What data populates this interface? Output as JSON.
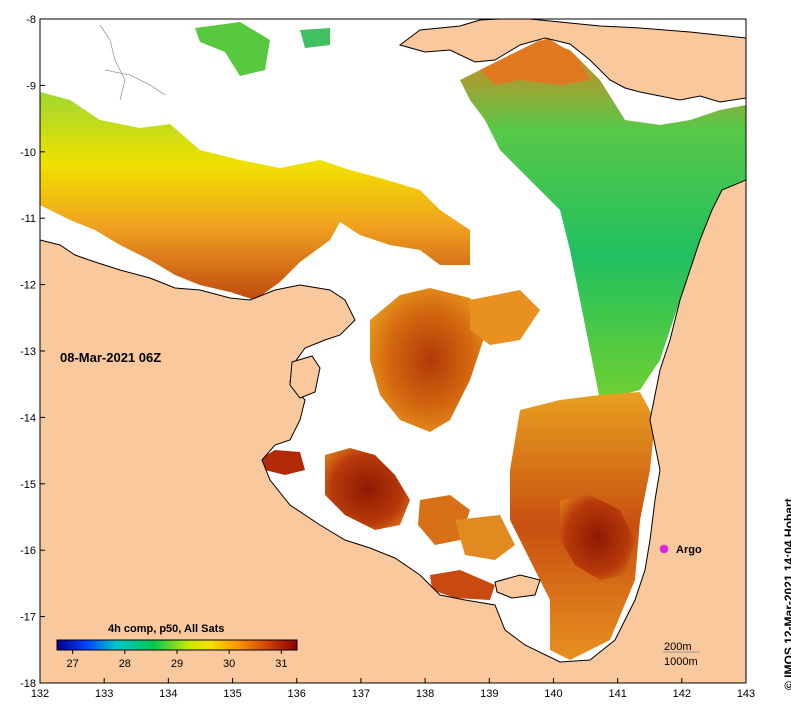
{
  "map": {
    "timestamp": "08-Mar-2021 06Z",
    "x_ticks": [
      "132",
      "133",
      "134",
      "135",
      "136",
      "137",
      "138",
      "139",
      "140",
      "141",
      "142",
      "143"
    ],
    "y_ticks": [
      "-8",
      "-9",
      "-10",
      "-11",
      "-12",
      "-13",
      "-14",
      "-15",
      "-16",
      "-17",
      "-18"
    ],
    "x_range": [
      132,
      143
    ],
    "y_range": [
      -18,
      -8
    ],
    "x_axis_label": "",
    "y_axis_label": ""
  },
  "colorbar": {
    "title": "4h comp, p50, All Sats",
    "tick_labels": [
      "27",
      "28",
      "29",
      "30",
      "31"
    ],
    "range": [
      26.7,
      31.3
    ]
  },
  "marker": {
    "label": "Argo",
    "lon": 141.7,
    "lat": -15.98,
    "color": "#e020e0"
  },
  "contours": {
    "label_1": "200m",
    "label_2": "1000m"
  },
  "credit": "© IMOS 12-Mar-2021 14:04 Hobart",
  "colors": {
    "land": "#f9c89c",
    "no_data": "#ffffff",
    "coast": "#000000",
    "colorbar_stops": [
      "#00008b",
      "#0040ff",
      "#00c8c8",
      "#00c850",
      "#c8e800",
      "#f8e000",
      "#f89000",
      "#d04000",
      "#8b0000"
    ]
  }
}
